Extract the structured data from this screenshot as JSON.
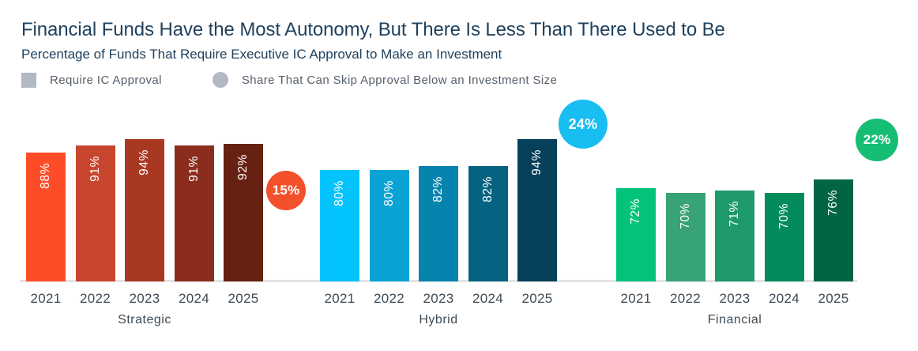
{
  "header": {
    "title": "Financial Funds Have the Most Autonomy, But There Is Less Than There Used to Be",
    "subtitle": "Percentage of Funds That Require Executive IC Approval to Make an Investment"
  },
  "legend": {
    "items": [
      {
        "shape": "square",
        "label": "Require IC Approval",
        "color": "#B2B9C3"
      },
      {
        "shape": "circle",
        "label": "Share That Can Skip Approval Below an Investment Size",
        "color": "#B2B9C3"
      }
    ]
  },
  "chart_data": {
    "type": "bar",
    "title": "Financial Funds Have the Most Autonomy, But There Is Less Than There Used to Be",
    "subtitle": "Percentage of Funds That Require Executive IC Approval to Make an Investment",
    "categories": [
      "2021",
      "2022",
      "2023",
      "2024",
      "2025"
    ],
    "unit": "%",
    "ylim": [
      0,
      100
    ],
    "grid": false,
    "legend_position": "top-left",
    "value_labels": "inside-top, rotated 90deg, white",
    "groups": [
      {
        "name": "Strategic",
        "series": "Require IC Approval",
        "values": [
          88,
          91,
          94,
          91,
          92
        ],
        "bar_colors": [
          "#FF4C28",
          "#C8462D",
          "#A93822",
          "#8A2D1C",
          "#662112"
        ],
        "skip_badge": {
          "label": "15%",
          "value": 15,
          "color": "#F4502B"
        }
      },
      {
        "name": "Hybrid",
        "series": "Require IC Approval",
        "values": [
          80,
          80,
          82,
          82,
          94
        ],
        "bar_colors": [
          "#02C3FB",
          "#0AA3D6",
          "#0784AE",
          "#056381",
          "#06405A"
        ],
        "skip_badge": {
          "label": "24%",
          "value": 24,
          "color": "#18BDF2"
        }
      },
      {
        "name": "Financial",
        "series": "Require IC Approval",
        "values": [
          72,
          70,
          71,
          70,
          76
        ],
        "bar_colors": [
          "#03C279",
          "#37A377",
          "#1F9A6A",
          "#038B5C",
          "#016545"
        ],
        "skip_badge": {
          "label": "22%",
          "value": 22,
          "color": "#16BE74"
        }
      }
    ]
  },
  "colors": {
    "title_text": "#1F415E",
    "axis_text": "#3F4B55",
    "legend_text": "#55606B",
    "legend_swatch": "#B2B9C3",
    "baseline": "#E3E3E6",
    "background": "#FFFFFF"
  }
}
